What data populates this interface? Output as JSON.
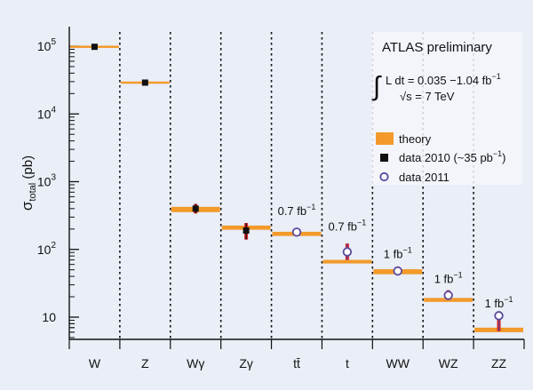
{
  "chart_data": {
    "type": "scatter",
    "title": "",
    "ylabel_main": "σ",
    "ylabel_sub": "total",
    "ylabel_unit": " (pb)",
    "yscale": "log",
    "ylim": [
      5,
      150000
    ],
    "yticks": [
      {
        "value": 100000,
        "base": "10",
        "exp": "5"
      },
      {
        "value": 10000,
        "base": "10",
        "exp": "4"
      },
      {
        "value": 1000,
        "base": "10",
        "exp": "3"
      },
      {
        "value": 100,
        "base": "10",
        "exp": "2"
      },
      {
        "value": 10,
        "base": "10",
        "exp": ""
      }
    ],
    "categories": [
      "W",
      "Z",
      "Wγ",
      "Zγ",
      "tt̄",
      "t",
      "WW",
      "WZ",
      "ZZ"
    ],
    "series": [
      {
        "name": "theory",
        "color": "#f39a2b",
        "values": [
          98000,
          29000,
          390,
          210,
          170,
          66,
          47,
          18,
          6.5
        ],
        "band_low": [
          95000,
          28000,
          355,
          195,
          158,
          62,
          43,
          16.8,
          6.0
        ],
        "band_high": [
          101000,
          30000,
          425,
          225,
          182,
          70,
          51,
          19.2,
          7.0
        ]
      },
      {
        "name": "data 2010 (~35 pb⁻¹)",
        "color": "#111111",
        "values": [
          98000,
          29000,
          400,
          190,
          null,
          null,
          null,
          null,
          null
        ],
        "err_low": [
          96000,
          28500,
          340,
          140,
          null,
          null,
          null,
          null,
          null
        ],
        "err_high": [
          100000,
          29500,
          470,
          245,
          null,
          null,
          null,
          null,
          null
        ]
      },
      {
        "name": "data 2011",
        "color": "#5a4a9c",
        "values": [
          null,
          null,
          null,
          null,
          180,
          92,
          48,
          21,
          10.5
        ],
        "err_low": [
          null,
          null,
          null,
          null,
          168,
          70,
          42,
          18,
          6.2
        ],
        "err_high": [
          null,
          null,
          null,
          null,
          194,
          122,
          56,
          25,
          12
        ]
      }
    ],
    "annotations": [
      {
        "category_index": 4,
        "value": 320,
        "text": "0.7 fb",
        "sup": "−1"
      },
      {
        "category_index": 5,
        "value": 190,
        "text": "0.7 fb",
        "sup": "−1"
      },
      {
        "category_index": 6,
        "value": 75,
        "text": "1 fb",
        "sup": "−1"
      },
      {
        "category_index": 7,
        "value": 32,
        "text": "1 fb",
        "sup": "−1"
      },
      {
        "category_index": 8,
        "value": 14,
        "text": "1 fb",
        "sup": "−1"
      }
    ],
    "grid": false,
    "legend_position": "right"
  },
  "labels": {
    "atlas": "ATLAS preliminary",
    "integral_sign": "∫",
    "lumi_text": "L dt = 0.035 −1.04 fb",
    "lumi_sup": "−1",
    "sqrt_text": "√s = 7 TeV",
    "legend_theory": "theory",
    "legend_data2010_pre": "data 2010 (~35 pb",
    "legend_data2010_sup": "−1",
    "legend_data2010_post": ")",
    "legend_data2011": "data 2011"
  }
}
